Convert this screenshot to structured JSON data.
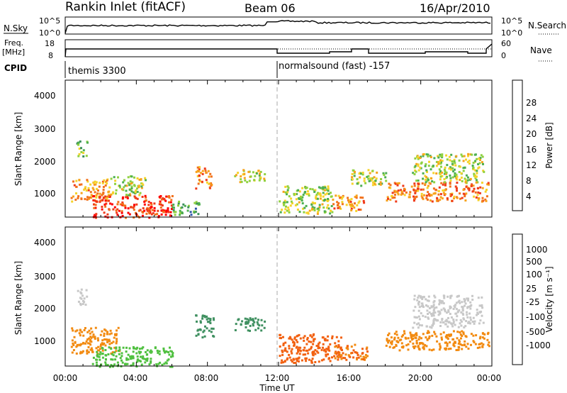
{
  "header": {
    "title": "Rankin Inlet (fitACF)",
    "beam": "Beam 06",
    "date": "16/Apr/2010"
  },
  "nsky_panel": {
    "label": "N.Sky",
    "ticks_left": [
      "10^5",
      "10^0"
    ],
    "ticks_right": [
      "10^5",
      "10^0"
    ],
    "right_label": "N.Search"
  },
  "freq_panel": {
    "label_top": "Freq.",
    "label_unit": "[MHz]",
    "ticks_left": [
      "18",
      "8"
    ],
    "ticks_right": [
      "60",
      "0"
    ],
    "right_label": "Nave"
  },
  "cpid_panel": {
    "label": "CPID",
    "segments": [
      "themis 3300",
      "normalsound (fast) -157"
    ]
  },
  "x_axis": {
    "label": "Time UT",
    "ticks": [
      "00:00",
      "04:00",
      "08:00",
      "12:00",
      "16:00",
      "20:00",
      "00:00"
    ]
  },
  "power_panel": {
    "ylabel": "Slant Range [km]",
    "yticks": [
      "4000",
      "3000",
      "2000",
      "1000"
    ],
    "colorbar_label": "Power [dB]",
    "colorbar_ticks": [
      "28",
      "24",
      "20",
      "16",
      "12",
      "8",
      "4"
    ],
    "colors": [
      "#0000ff",
      "#2b57a8",
      "#3c8f5b",
      "#4caf50",
      "#8fd13f",
      "#f5d32a",
      "#f7a21b",
      "#f2711c",
      "#ef3a1a",
      "#ff0000"
    ]
  },
  "velocity_panel": {
    "ylabel": "Slant Range [km]",
    "yticks": [
      "4000",
      "3000",
      "2000",
      "1000"
    ],
    "colorbar_label": "Velocity [m s⁻¹]",
    "colorbar_ticks": [
      "1000",
      "500",
      "100",
      "25",
      "-25",
      "-100",
      "-500",
      "-1000"
    ],
    "colors": [
      "#1f3fbf",
      "#2f6fa8",
      "#3f9060",
      "#50c040",
      "#c8c8c8",
      "#c8c8c8",
      "#f2b020",
      "#f28a10",
      "#f26010",
      "#ff2010"
    ]
  },
  "chart_data": {
    "type": "heatmap",
    "x_range_hours": [
      0,
      24
    ],
    "y_range_km": [
      180,
      4500
    ],
    "power_blobs": [
      {
        "t0": 0.6,
        "t1": 1.2,
        "r0": 2100,
        "r1": 2600,
        "v": 12
      },
      {
        "t0": 0.3,
        "t1": 2.5,
        "r0": 700,
        "r1": 1400,
        "v": 20
      },
      {
        "t0": 1.5,
        "t1": 6.0,
        "r0": 180,
        "r1": 900,
        "v": 26
      },
      {
        "t0": 2.5,
        "t1": 4.5,
        "r0": 900,
        "r1": 1500,
        "v": 14
      },
      {
        "t0": 6.0,
        "t1": 7.5,
        "r0": 250,
        "r1": 700,
        "v": 10
      },
      {
        "t0": 7.3,
        "t1": 8.2,
        "r0": 1100,
        "r1": 1800,
        "v": 22
      },
      {
        "t0": 9.5,
        "t1": 11.2,
        "r0": 1300,
        "r1": 1700,
        "v": 16
      },
      {
        "t0": 12.0,
        "t1": 15.0,
        "r0": 300,
        "r1": 1200,
        "v": 14
      },
      {
        "t0": 15.0,
        "t1": 16.8,
        "r0": 400,
        "r1": 900,
        "v": 20
      },
      {
        "t0": 16.0,
        "t1": 18.0,
        "r0": 1200,
        "r1": 1700,
        "v": 14
      },
      {
        "t0": 18.0,
        "t1": 23.8,
        "r0": 700,
        "r1": 1300,
        "v": 22
      },
      {
        "t0": 19.5,
        "t1": 23.5,
        "r0": 1300,
        "r1": 2200,
        "v": 14
      }
    ],
    "velocity_blobs": [
      {
        "t0": 0.6,
        "t1": 1.2,
        "r0": 2100,
        "r1": 2600,
        "v": 0
      },
      {
        "t0": 0.3,
        "t1": 3.0,
        "r0": 600,
        "r1": 1400,
        "v": -150
      },
      {
        "t0": 1.5,
        "t1": 6.0,
        "r0": 180,
        "r1": 800,
        "v": 60
      },
      {
        "t0": 7.3,
        "t1": 8.3,
        "r0": 1100,
        "r1": 1800,
        "v": 200
      },
      {
        "t0": 9.5,
        "t1": 11.2,
        "r0": 1300,
        "r1": 1700,
        "v": 150
      },
      {
        "t0": 12.0,
        "t1": 15.5,
        "r0": 300,
        "r1": 1200,
        "v": -400
      },
      {
        "t0": 15.0,
        "t1": 17.0,
        "r0": 400,
        "r1": 900,
        "v": -300
      },
      {
        "t0": 18.0,
        "t1": 23.8,
        "r0": 700,
        "r1": 1300,
        "v": -200
      },
      {
        "t0": 19.5,
        "t1": 23.5,
        "r0": 1400,
        "r1": 2400,
        "v": 0
      }
    ]
  }
}
